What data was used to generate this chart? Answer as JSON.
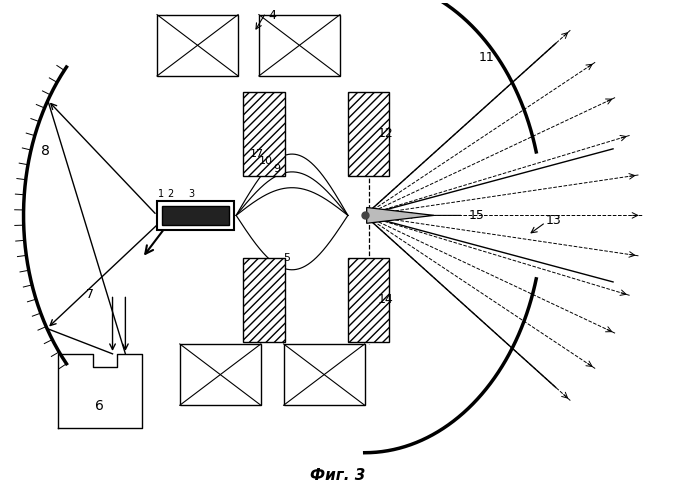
{
  "title": "Фиг. 3",
  "bg_color": "#ffffff",
  "fig_width": 6.76,
  "fig_height": 5.0,
  "dpi": 100
}
